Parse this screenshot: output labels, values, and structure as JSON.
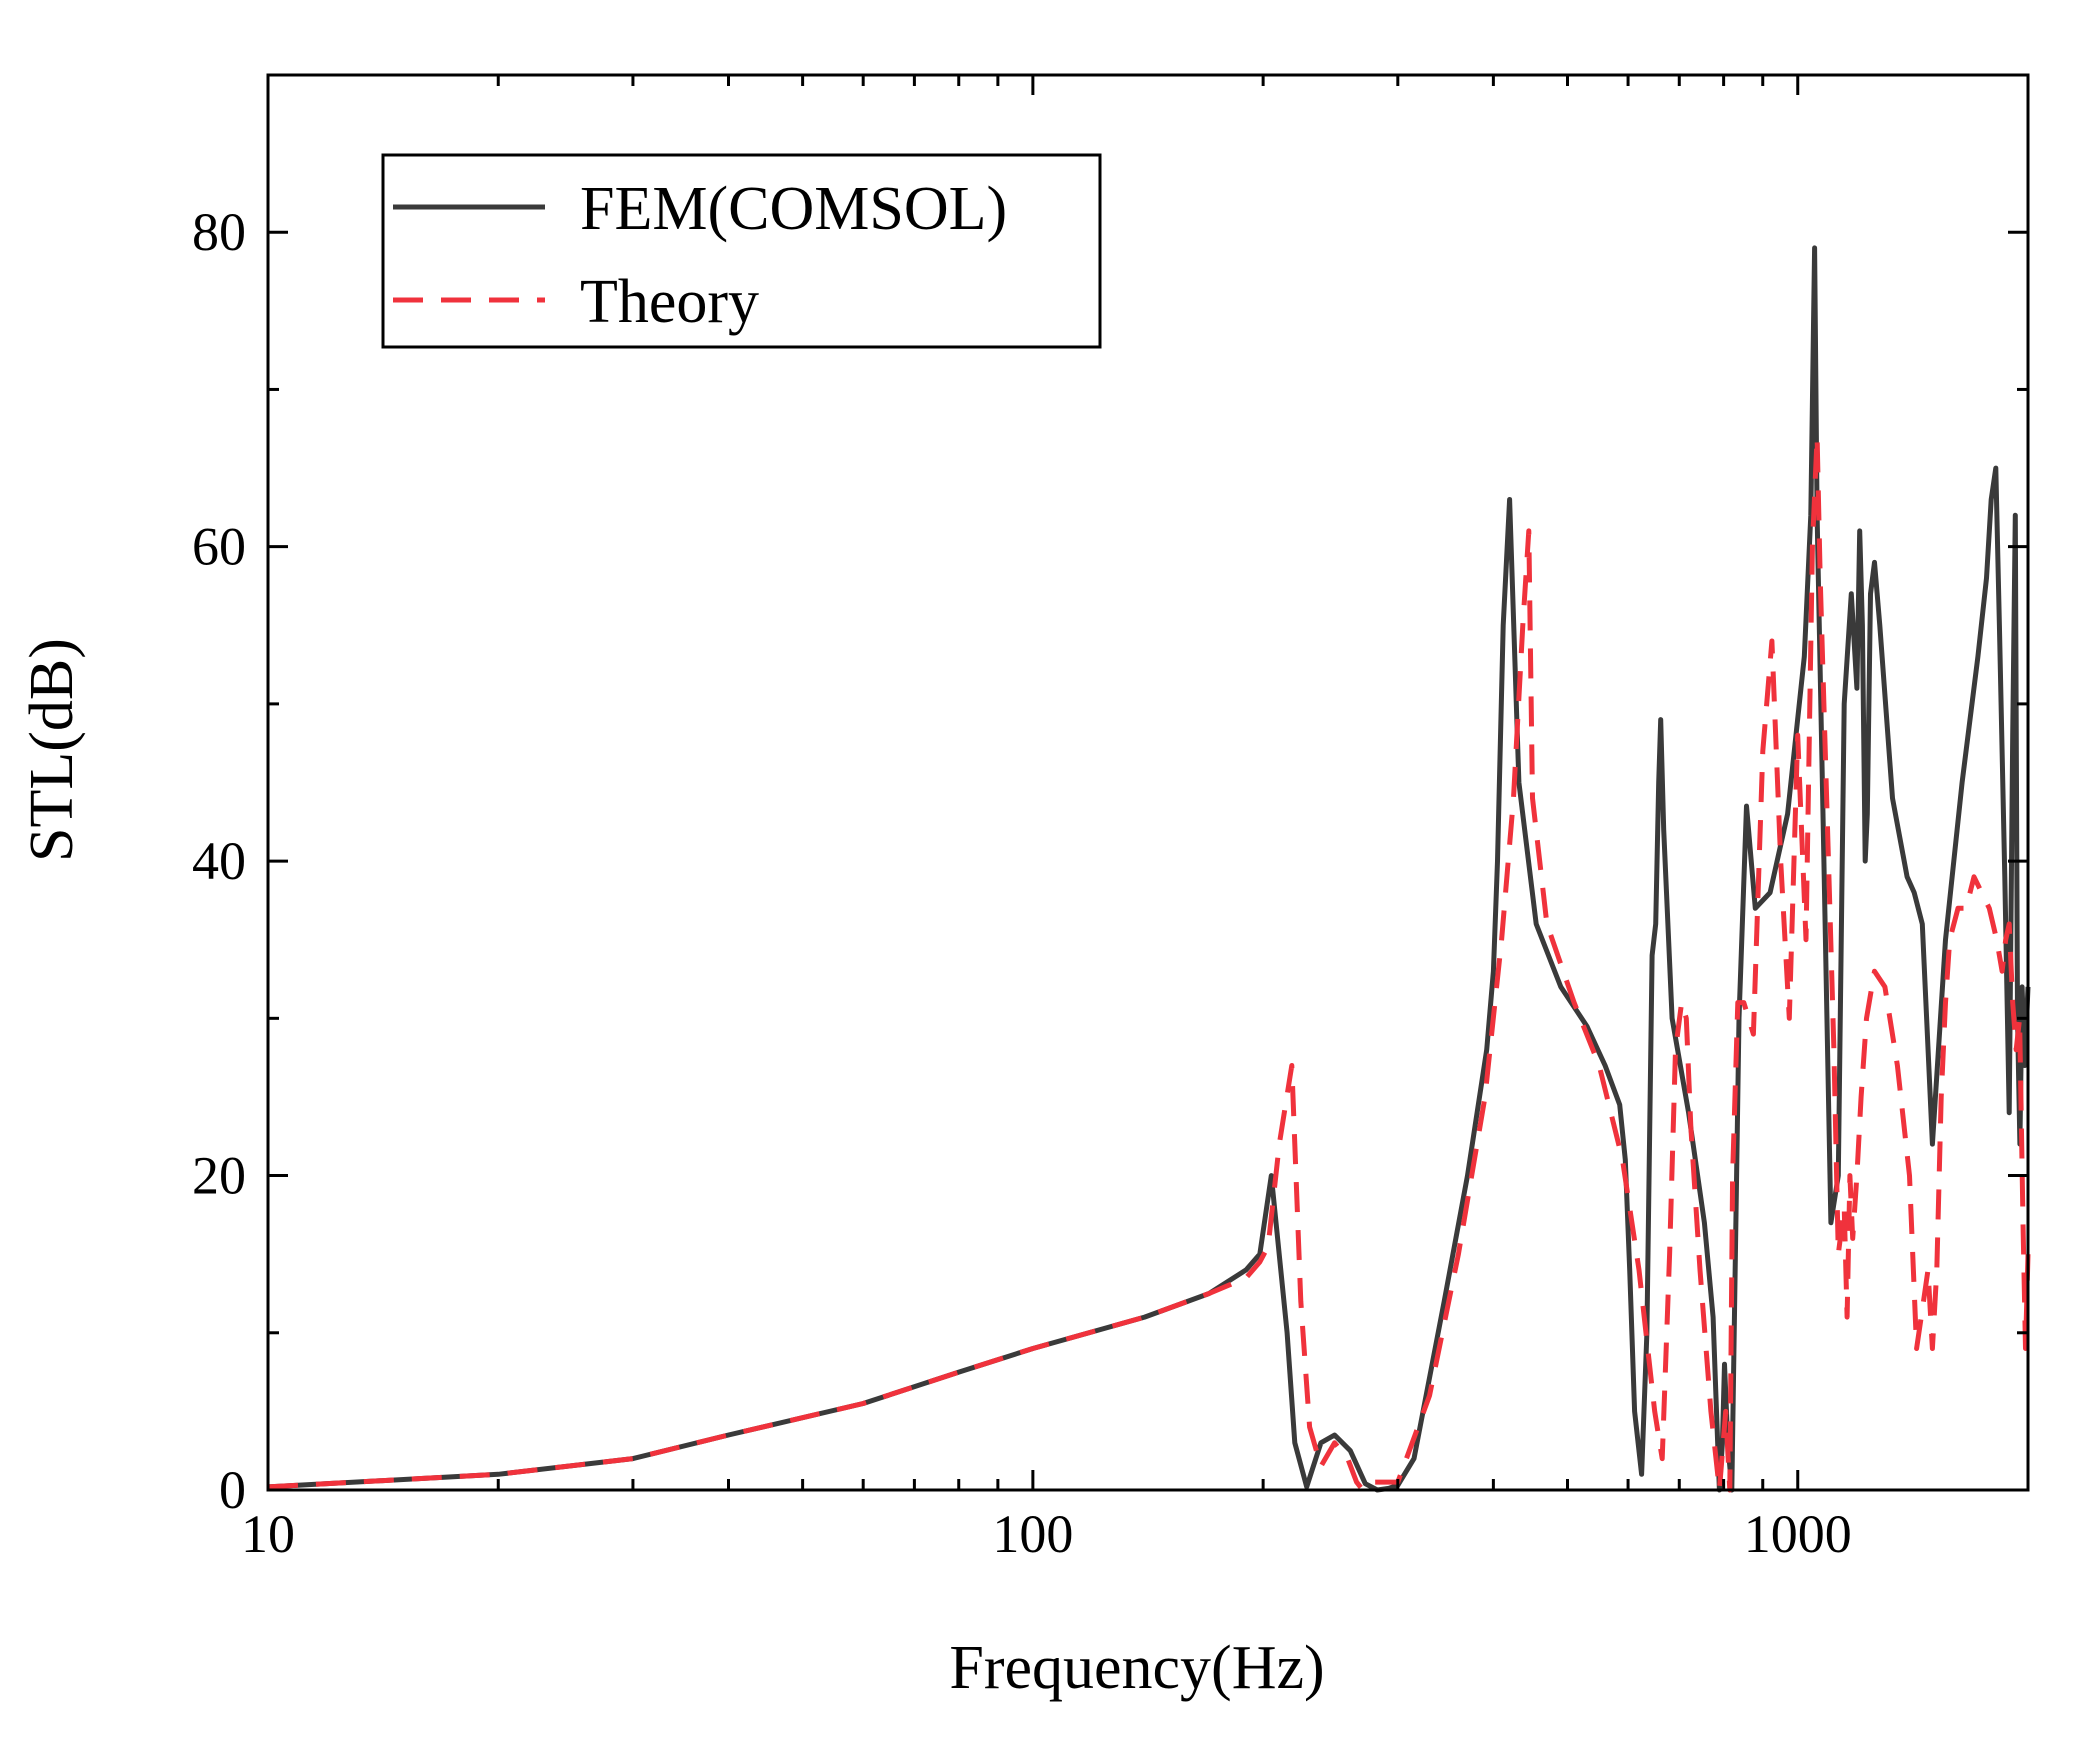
{
  "chart_data": {
    "type": "line",
    "title": "",
    "xlabel": "Frequency(Hz)",
    "ylabel": "STL(dB)",
    "xscale": "log",
    "xlim": [
      10,
      2000
    ],
    "ylim": [
      0,
      90
    ],
    "xticks": [
      10,
      100,
      1000
    ],
    "xtick_labels": [
      "10",
      "100",
      "1000"
    ],
    "yticks": [
      0,
      20,
      40,
      60,
      80
    ],
    "ytick_labels": [
      "0",
      "20",
      "40",
      "60",
      "80"
    ],
    "grid": false,
    "legend_position": "top-left",
    "series": [
      {
        "name": "FEM(COMSOL)",
        "color": "#3a3a3a",
        "dash": "solid",
        "x": [
          10,
          20,
          30,
          40,
          60,
          80,
          100,
          140,
          170,
          190,
          198,
          205,
          215,
          220,
          228,
          238,
          248,
          260,
          272,
          282,
          292,
          300,
          315,
          345,
          370,
          392,
          400,
          405,
          412,
          420,
          432,
          455,
          490,
          530,
          560,
          585,
          595,
          603,
          612,
          625,
          635,
          645,
          652,
          658,
          662,
          668,
          685,
          720,
          755,
          775,
          783,
          790,
          797,
          802,
          810,
          820,
          838,
          857,
          880,
          920,
          970,
          1020,
          1040,
          1052,
          1060,
          1080,
          1105,
          1130,
          1150,
          1175,
          1195,
          1205,
          1215,
          1225,
          1233,
          1245,
          1260,
          1280,
          1330,
          1390,
          1420,
          1455,
          1500,
          1560,
          1640,
          1720,
          1765,
          1790,
          1815,
          1835,
          1865,
          1890,
          1910,
          1925,
          1938,
          1952,
          1965,
          1980,
          2000
        ],
        "y": [
          0.2,
          1,
          2,
          3.5,
          5.5,
          7.5,
          9,
          11,
          12.5,
          14,
          15,
          20,
          10,
          3,
          0.2,
          3,
          3.5,
          2.5,
          0.4,
          0,
          0.1,
          0.3,
          2,
          12,
          20,
          28,
          33,
          40,
          55,
          63,
          45,
          36,
          32,
          29.5,
          27,
          24.5,
          21,
          14,
          5,
          1,
          10,
          34,
          36,
          45,
          49,
          42,
          30,
          24,
          17,
          11,
          5,
          0,
          3,
          8,
          3,
          0,
          30,
          43.5,
          37,
          38,
          43,
          53,
          62,
          79,
          62,
          42,
          17,
          20,
          50,
          57,
          51,
          61,
          55,
          40,
          43,
          57,
          59,
          55,
          44,
          39,
          38,
          36,
          22,
          35,
          45,
          53,
          58,
          63,
          65,
          55,
          39,
          24,
          48,
          62,
          30,
          22,
          32,
          27,
          32
        ]
      },
      {
        "name": "Theory",
        "color": "#f0323c",
        "dash": "dashed",
        "x": [
          10,
          20,
          30,
          40,
          60,
          80,
          100,
          140,
          170,
          190,
          198,
          203,
          210,
          218,
          224,
          230,
          238,
          248,
          258,
          265,
          270,
          280,
          300,
          330,
          360,
          390,
          410,
          425,
          437,
          445,
          450,
          470,
          510,
          550,
          590,
          620,
          650,
          665,
          680,
          692,
          705,
          715,
          725,
          745,
          770,
          790,
          805,
          815,
          822,
          835,
          850,
          875,
          900,
          925,
          950,
          975,
          1000,
          1025,
          1045,
          1060,
          1070,
          1085,
          1100,
          1115,
          1130,
          1150,
          1160,
          1170,
          1180,
          1195,
          1210,
          1230,
          1260,
          1300,
          1350,
          1400,
          1430,
          1460,
          1480,
          1500,
          1520,
          1540,
          1560,
          1580,
          1620,
          1660,
          1700,
          1740,
          1780,
          1820,
          1850,
          1870,
          1890,
          1910,
          1930,
          1950,
          1970,
          1985,
          2000
        ],
        "y": [
          0.2,
          1,
          2,
          3.5,
          5.5,
          7.5,
          9,
          11,
          12.5,
          13.5,
          14.5,
          15.5,
          22,
          27,
          12,
          4,
          1.5,
          3,
          2,
          0.5,
          0,
          0.5,
          0.5,
          6,
          15,
          25,
          35,
          44,
          55,
          61,
          44,
          36,
          31,
          27,
          21,
          14,
          5,
          2,
          15,
          28,
          31,
          30,
          23,
          14,
          5,
          0,
          5,
          0,
          20,
          31,
          31,
          29,
          47,
          54,
          40,
          30,
          48,
          35,
          60,
          67,
          58,
          48,
          38,
          28,
          15,
          18,
          11,
          20,
          16,
          20,
          25,
          30,
          33,
          32,
          27,
          20,
          9,
          12,
          14,
          9,
          14,
          25,
          31,
          35,
          37,
          37,
          39,
          38,
          37,
          35,
          33,
          35,
          36,
          31,
          28,
          30,
          17,
          9,
          15
        ]
      }
    ]
  }
}
